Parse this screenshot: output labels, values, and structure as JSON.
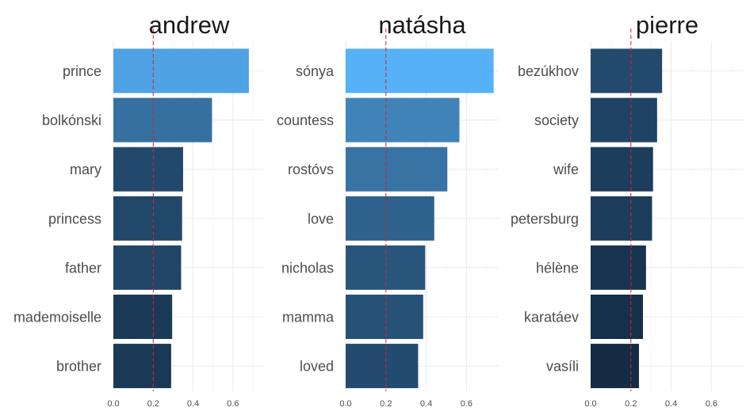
{
  "chart_data": [
    {
      "type": "bar",
      "orientation": "horizontal",
      "title": "andrew",
      "categories": [
        "prince",
        "bolkónski",
        "mary",
        "princess",
        "father",
        "mademoiselle",
        "brother"
      ],
      "values": [
        0.68,
        0.495,
        0.35,
        0.345,
        0.34,
        0.295,
        0.29
      ],
      "xlim": [
        0,
        0.76
      ],
      "xticks": [
        "0.0",
        "0.2",
        "0.4",
        "0.6"
      ],
      "reference_line": 0.2,
      "grid": true
    },
    {
      "type": "bar",
      "orientation": "horizontal",
      "title": "natásha",
      "categories": [
        "sónya",
        "countess",
        "rostóvs",
        "love",
        "nicholas",
        "mamma",
        "loved"
      ],
      "values": [
        0.735,
        0.565,
        0.505,
        0.44,
        0.395,
        0.385,
        0.36
      ],
      "xlim": [
        0,
        0.76
      ],
      "xticks": [
        "0.0",
        "0.2",
        "0.4",
        "0.6"
      ],
      "reference_line": 0.2,
      "grid": true
    },
    {
      "type": "bar",
      "orientation": "horizontal",
      "title": "pierre",
      "categories": [
        "bezúkhov",
        "society",
        "wife",
        "petersburg",
        "hélène",
        "karatáev",
        "vasíli"
      ],
      "values": [
        0.355,
        0.33,
        0.31,
        0.305,
        0.275,
        0.26,
        0.24
      ],
      "xlim": [
        0,
        0.76
      ],
      "xticks": [
        "0.0",
        "0.2",
        "0.4",
        "0.6"
      ],
      "reference_line": 0.2,
      "grid": true
    }
  ],
  "colors": {
    "bar_low": "#132b43",
    "bar_high": "#56b1f7",
    "reference_line": "#d62728",
    "grid": "#ebebeb",
    "text": "#4d4d4d",
    "title": "#1a1a1a"
  }
}
